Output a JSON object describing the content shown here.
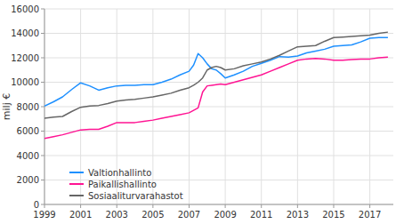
{
  "chart_data": {
    "type": "line",
    "y_label": "milj €",
    "x": [
      1999,
      1999.5,
      2000,
      2000.5,
      2001,
      2001.5,
      2002,
      2002.5,
      2003,
      2003.5,
      2004,
      2004.5,
      2005,
      2005.5,
      2006,
      2006.5,
      2007,
      2007.25,
      2007.5,
      2007.75,
      2008,
      2008.25,
      2008.5,
      2008.75,
      2009,
      2009.5,
      2010,
      2010.5,
      2011,
      2011.5,
      2012,
      2012.5,
      2013,
      2013.5,
      2014,
      2014.5,
      2015,
      2015.5,
      2016,
      2016.5,
      2017,
      2017.5,
      2018
    ],
    "series": [
      {
        "name": "Valtionhallinto",
        "color": "#1e90ff",
        "values": [
          8050,
          8400,
          8800,
          9400,
          9950,
          9700,
          9350,
          9550,
          9700,
          9750,
          9750,
          9800,
          9800,
          10000,
          10250,
          10600,
          10900,
          11400,
          12350,
          12000,
          11500,
          11100,
          11000,
          10700,
          10350,
          10600,
          10900,
          11300,
          11550,
          11800,
          12100,
          12050,
          12150,
          12400,
          12550,
          12700,
          12950,
          13000,
          13050,
          13300,
          13600,
          13650,
          13650
        ]
      },
      {
        "name": "Paikallishallinto",
        "color": "#ff1493",
        "values": [
          5400,
          5550,
          5700,
          5900,
          6100,
          6150,
          6150,
          6400,
          6700,
          6700,
          6700,
          6800,
          6900,
          7050,
          7200,
          7350,
          7500,
          7700,
          7900,
          9200,
          9700,
          9750,
          9800,
          9850,
          9800,
          10000,
          10200,
          10400,
          10600,
          10900,
          11200,
          11500,
          11800,
          11900,
          11950,
          11900,
          11800,
          11800,
          11850,
          11900,
          11900,
          12000,
          12050
        ]
      },
      {
        "name": "Sosiaaliturvarahastot",
        "color": "#666666",
        "values": [
          7050,
          7150,
          7200,
          7600,
          7950,
          8050,
          8100,
          8250,
          8450,
          8550,
          8600,
          8700,
          8800,
          8950,
          9100,
          9350,
          9550,
          9750,
          10000,
          10350,
          11000,
          11200,
          11300,
          11200,
          11000,
          11100,
          11350,
          11500,
          11650,
          11900,
          12200,
          12550,
          12900,
          12950,
          13000,
          13350,
          13650,
          13700,
          13750,
          13800,
          13850,
          14000,
          14100
        ]
      }
    ],
    "xlim": [
      1999,
      2018.3
    ],
    "xticks": [
      1999,
      2001,
      2003,
      2005,
      2007,
      2009,
      2011,
      2013,
      2015,
      2017
    ],
    "ylim": [
      0,
      16000
    ],
    "yticks": [
      0,
      2000,
      4000,
      6000,
      8000,
      10000,
      12000,
      14000,
      16000
    ],
    "grid": true,
    "legend": "lower left"
  }
}
